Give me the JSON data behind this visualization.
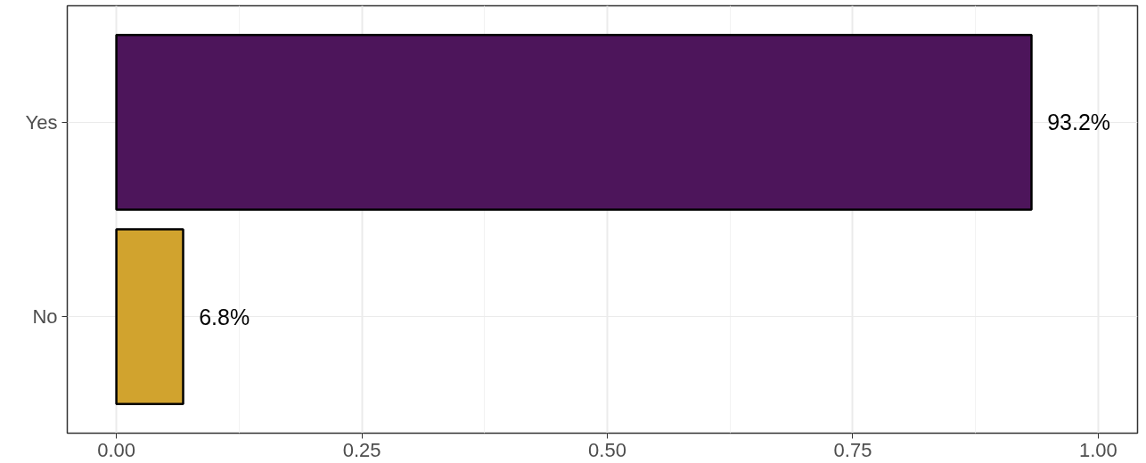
{
  "chart_data": {
    "type": "bar",
    "orientation": "horizontal",
    "categories": [
      "Yes",
      "No"
    ],
    "values": [
      0.932,
      0.068
    ],
    "colors": [
      "#4d155b",
      "#d1a32e"
    ],
    "value_labels": [
      "93.2%",
      "6.8%"
    ],
    "xlim": [
      -0.05,
      1.04
    ],
    "xticks": [
      "0.00",
      "0.25",
      "0.50",
      "0.75",
      "1.00"
    ],
    "grid": true
  }
}
